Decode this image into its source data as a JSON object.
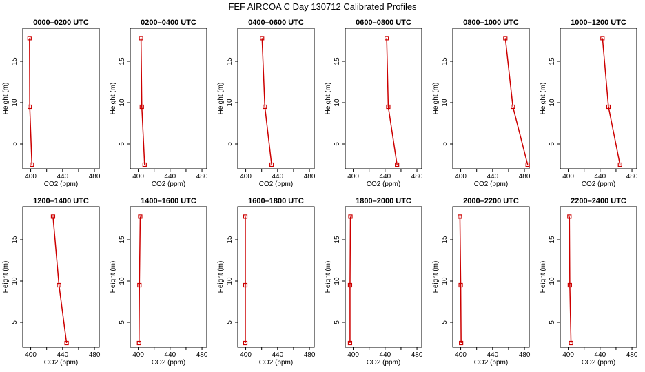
{
  "figure": {
    "title": "FEF AIRCOA C  Day 130712  Calibrated Profiles"
  },
  "colors": {
    "line": "#cc0000",
    "marker": "#cc0000",
    "axes": "#000000"
  },
  "chart_data": [
    {
      "type": "line",
      "title": "0000–0200 UTC",
      "xlabel": "CO2 (ppm)",
      "ylabel": "Height (m)",
      "xlim": [
        390,
        486
      ],
      "ylim": [
        2,
        19
      ],
      "xticks": [
        "400",
        "440",
        "480"
      ],
      "yticks": [
        "5",
        "10",
        "15"
      ],
      "grid": false,
      "series": [
        {
          "x": [
            398.5,
            398.8,
            401.5
          ],
          "y": [
            17.8,
            9.5,
            2.5
          ]
        }
      ]
    },
    {
      "type": "line",
      "title": "0200–0400 UTC",
      "xlabel": "CO2 (ppm)",
      "ylabel": "Height (m)",
      "xlim": [
        390,
        486
      ],
      "ylim": [
        2,
        19
      ],
      "xticks": [
        "400",
        "440",
        "480"
      ],
      "yticks": [
        "5",
        "10",
        "15"
      ],
      "grid": false,
      "series": [
        {
          "x": [
            403.5,
            404.5,
            408.0
          ],
          "y": [
            17.8,
            9.5,
            2.5
          ]
        }
      ]
    },
    {
      "type": "line",
      "title": "0400–0600 UTC",
      "xlabel": "CO2 (ppm)",
      "ylabel": "Height (m)",
      "xlim": [
        390,
        486
      ],
      "ylim": [
        2,
        19
      ],
      "xticks": [
        "400",
        "440",
        "480"
      ],
      "yticks": [
        "5",
        "10",
        "15"
      ],
      "grid": false,
      "series": [
        {
          "x": [
            420.5,
            424.0,
            432.5
          ],
          "y": [
            17.8,
            9.5,
            2.5
          ]
        }
      ]
    },
    {
      "type": "line",
      "title": "0600–0800 UTC",
      "xlabel": "CO2 (ppm)",
      "ylabel": "Height (m)",
      "xlim": [
        390,
        486
      ],
      "ylim": [
        2,
        19
      ],
      "xticks": [
        "400",
        "440",
        "480"
      ],
      "yticks": [
        "5",
        "10",
        "15"
      ],
      "grid": false,
      "series": [
        {
          "x": [
            442.0,
            444.0,
            455.0
          ],
          "y": [
            17.8,
            9.5,
            2.5
          ]
        }
      ]
    },
    {
      "type": "line",
      "title": "0800–1000 UTC",
      "xlabel": "CO2 (ppm)",
      "ylabel": "Height (m)",
      "xlim": [
        390,
        486
      ],
      "ylim": [
        2,
        19
      ],
      "xticks": [
        "400",
        "440",
        "480"
      ],
      "yticks": [
        "5",
        "10",
        "15"
      ],
      "grid": false,
      "series": [
        {
          "x": [
            456.0,
            465.5,
            484.0
          ],
          "y": [
            17.8,
            9.5,
            2.5
          ]
        }
      ]
    },
    {
      "type": "line",
      "title": "1000–1200 UTC",
      "xlabel": "CO2 (ppm)",
      "ylabel": "Height (m)",
      "xlim": [
        390,
        486
      ],
      "ylim": [
        2,
        19
      ],
      "xticks": [
        "400",
        "440",
        "480"
      ],
      "yticks": [
        "5",
        "10",
        "15"
      ],
      "grid": false,
      "series": [
        {
          "x": [
            443.0,
            450.5,
            465.0
          ],
          "y": [
            17.8,
            9.5,
            2.5
          ]
        }
      ]
    },
    {
      "type": "line",
      "title": "1200–1400 UTC",
      "xlabel": "CO2 (ppm)",
      "ylabel": "Height (m)",
      "xlim": [
        390,
        486
      ],
      "ylim": [
        2,
        19
      ],
      "xticks": [
        "400",
        "440",
        "480"
      ],
      "yticks": [
        "5",
        "10",
        "15"
      ],
      "grid": false,
      "series": [
        {
          "x": [
            428.0,
            435.5,
            445.0
          ],
          "y": [
            17.8,
            9.5,
            2.5
          ]
        }
      ]
    },
    {
      "type": "line",
      "title": "1400–1600 UTC",
      "xlabel": "CO2 (ppm)",
      "ylabel": "Height (m)",
      "xlim": [
        390,
        486
      ],
      "ylim": [
        2,
        19
      ],
      "xticks": [
        "400",
        "440",
        "480"
      ],
      "yticks": [
        "5",
        "10",
        "15"
      ],
      "grid": false,
      "series": [
        {
          "x": [
            402.5,
            401.5,
            401.0
          ],
          "y": [
            17.8,
            9.5,
            2.5
          ]
        }
      ]
    },
    {
      "type": "line",
      "title": "1600–1800 UTC",
      "xlabel": "CO2 (ppm)",
      "ylabel": "Height (m)",
      "xlim": [
        390,
        486
      ],
      "ylim": [
        2,
        19
      ],
      "xticks": [
        "400",
        "440",
        "480"
      ],
      "yticks": [
        "5",
        "10",
        "15"
      ],
      "grid": false,
      "series": [
        {
          "x": [
            399.5,
            399.5,
            399.5
          ],
          "y": [
            17.8,
            9.5,
            2.5
          ]
        }
      ]
    },
    {
      "type": "line",
      "title": "1800–2000 UTC",
      "xlabel": "CO2 (ppm)",
      "ylabel": "Height (m)",
      "xlim": [
        390,
        486
      ],
      "ylim": [
        2,
        19
      ],
      "xticks": [
        "400",
        "440",
        "480"
      ],
      "yticks": [
        "5",
        "10",
        "15"
      ],
      "grid": false,
      "series": [
        {
          "x": [
            396.5,
            396.0,
            396.0
          ],
          "y": [
            17.8,
            9.5,
            2.5
          ]
        }
      ]
    },
    {
      "type": "line",
      "title": "2000–2200 UTC",
      "xlabel": "CO2 (ppm)",
      "ylabel": "Height (m)",
      "xlim": [
        390,
        486
      ],
      "ylim": [
        2,
        19
      ],
      "xticks": [
        "400",
        "440",
        "480"
      ],
      "yticks": [
        "5",
        "10",
        "15"
      ],
      "grid": false,
      "series": [
        {
          "x": [
            399.0,
            400.0,
            400.5
          ],
          "y": [
            17.8,
            9.5,
            2.5
          ]
        }
      ]
    },
    {
      "type": "line",
      "title": "2200–2400 UTC",
      "xlabel": "CO2 (ppm)",
      "ylabel": "Height (m)",
      "xlim": [
        390,
        486
      ],
      "ylim": [
        2,
        19
      ],
      "xticks": [
        "400",
        "440",
        "480"
      ],
      "yticks": [
        "5",
        "10",
        "15"
      ],
      "grid": false,
      "series": [
        {
          "x": [
            401.5,
            402.0,
            403.5
          ],
          "y": [
            17.8,
            9.5,
            2.5
          ]
        }
      ]
    }
  ]
}
